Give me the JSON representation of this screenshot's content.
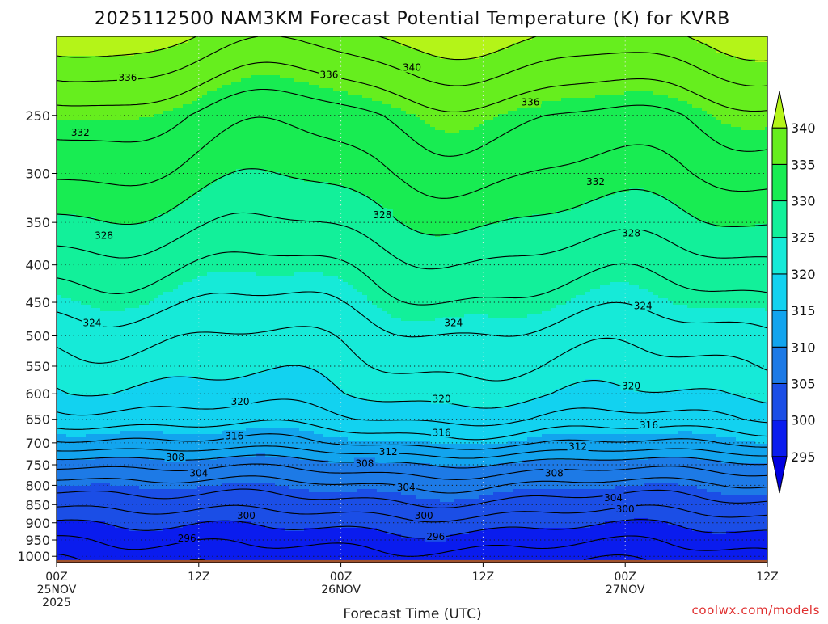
{
  "chart_data": {
    "type": "heatmap",
    "title": "2025112500 NAM3KM Forecast Potential Temperature (K) for KVRB",
    "xlabel": "Forecast Time (UTC)",
    "ylabel": "",
    "credit": "coolwx.com/models",
    "y_axis": {
      "scale": "log",
      "inverted": true,
      "range": [
        1020,
        195
      ],
      "ticks": [
        250,
        300,
        350,
        400,
        450,
        500,
        550,
        600,
        650,
        700,
        750,
        800,
        850,
        900,
        950,
        1000
      ]
    },
    "x_axis": {
      "range_hours": [
        0,
        60
      ],
      "ticks": [
        {
          "hour": 0,
          "lines": [
            "00Z",
            "25NOV",
            "2025"
          ]
        },
        {
          "hour": 12,
          "lines": [
            "12Z"
          ]
        },
        {
          "hour": 24,
          "lines": [
            "00Z",
            "26NOV"
          ]
        },
        {
          "hour": 36,
          "lines": [
            "12Z"
          ]
        },
        {
          "hour": 48,
          "lines": [
            "00Z",
            "27NOV"
          ]
        },
        {
          "hour": 60,
          "lines": [
            "12Z"
          ]
        }
      ]
    },
    "grid": true,
    "surface_pressure_hpa": 1012,
    "colorbar": {
      "labels": [
        295,
        300,
        305,
        310,
        315,
        320,
        325,
        330,
        335,
        340
      ],
      "bins": [
        {
          "from": 290,
          "to": 295,
          "color": "#0000e0"
        },
        {
          "from": 295,
          "to": 300,
          "color": "#0a1cee"
        },
        {
          "from": 300,
          "to": 305,
          "color": "#1b4ee6"
        },
        {
          "from": 305,
          "to": 310,
          "color": "#1d7ae6"
        },
        {
          "from": 310,
          "to": 315,
          "color": "#12a4ee"
        },
        {
          "from": 315,
          "to": 320,
          "color": "#12d2f0"
        },
        {
          "from": 320,
          "to": 325,
          "color": "#16ead8"
        },
        {
          "from": 325,
          "to": 330,
          "color": "#12f09a"
        },
        {
          "from": 330,
          "to": 335,
          "color": "#18ec52"
        },
        {
          "from": 335,
          "to": 340,
          "color": "#66ee1e"
        },
        {
          "from": 340,
          "to": 350,
          "color": "#b4f418"
        }
      ]
    },
    "profile": {
      "pressure_hpa": [
        1010,
        950,
        900,
        850,
        800,
        750,
        700,
        650,
        600,
        550,
        500,
        450,
        400,
        350,
        300,
        250,
        200
      ],
      "theta_k": [
        296.0,
        298.0,
        300.0,
        302.5,
        305.0,
        308.5,
        313.5,
        317.0,
        319.5,
        321.0,
        322.5,
        324.5,
        326.5,
        329.0,
        331.5,
        334.0,
        339.5
      ]
    },
    "contour_interval_k": 2,
    "contour_labels": [
      {
        "text": "336",
        "hour": 6.0,
        "p": 222
      },
      {
        "text": "336",
        "hour": 23.0,
        "p": 220
      },
      {
        "text": "340",
        "hour": 30.0,
        "p": 215
      },
      {
        "text": "336",
        "hour": 40.0,
        "p": 240
      },
      {
        "text": "332",
        "hour": 2.0,
        "p": 264
      },
      {
        "text": "332",
        "hour": 45.5,
        "p": 308
      },
      {
        "text": "328",
        "hour": 4.0,
        "p": 365
      },
      {
        "text": "328",
        "hour": 27.5,
        "p": 342
      },
      {
        "text": "328",
        "hour": 48.5,
        "p": 362
      },
      {
        "text": "324",
        "hour": 3.0,
        "p": 480
      },
      {
        "text": "324",
        "hour": 33.5,
        "p": 480
      },
      {
        "text": "324",
        "hour": 49.5,
        "p": 455
      },
      {
        "text": "320",
        "hour": 15.5,
        "p": 615
      },
      {
        "text": "320",
        "hour": 32.5,
        "p": 610
      },
      {
        "text": "320",
        "hour": 48.5,
        "p": 585
      },
      {
        "text": "316",
        "hour": 15.0,
        "p": 685
      },
      {
        "text": "316",
        "hour": 32.5,
        "p": 678
      },
      {
        "text": "316",
        "hour": 50.0,
        "p": 662
      },
      {
        "text": "312",
        "hour": 28.0,
        "p": 720
      },
      {
        "text": "312",
        "hour": 44.0,
        "p": 708
      },
      {
        "text": "308",
        "hour": 10.0,
        "p": 733
      },
      {
        "text": "308",
        "hour": 26.0,
        "p": 747
      },
      {
        "text": "308",
        "hour": 42.0,
        "p": 770
      },
      {
        "text": "304",
        "hour": 12.0,
        "p": 770
      },
      {
        "text": "304",
        "hour": 29.5,
        "p": 805
      },
      {
        "text": "304",
        "hour": 47.0,
        "p": 832
      },
      {
        "text": "300",
        "hour": 16.0,
        "p": 880
      },
      {
        "text": "300",
        "hour": 31.0,
        "p": 880
      },
      {
        "text": "300",
        "hour": 48.0,
        "p": 862
      },
      {
        "text": "296",
        "hour": 11.0,
        "p": 945
      },
      {
        "text": "296",
        "hour": 32.0,
        "p": 940
      }
    ]
  }
}
